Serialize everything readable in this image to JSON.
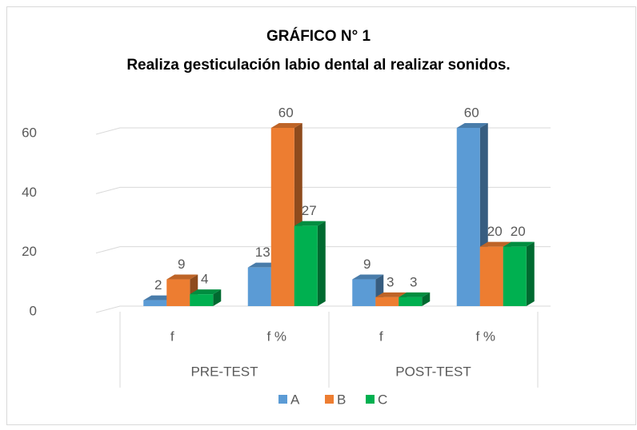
{
  "chart_data": {
    "type": "bar3d",
    "title": "GRÁFICO N° 1",
    "subtitle": "Realiza gesticulación labio dental al realizar sonidos.",
    "categories": [
      "f",
      "f %",
      "f",
      "f %"
    ],
    "groups": [
      "PRE-TEST",
      "POST-TEST"
    ],
    "series": [
      {
        "name": "A",
        "color": "#5b9bd5",
        "values": [
          2,
          13,
          9,
          60
        ]
      },
      {
        "name": "B",
        "color": "#ed7d31",
        "values": [
          9,
          60,
          3,
          20
        ]
      },
      {
        "name": "C",
        "color": "#00b050",
        "values": [
          4,
          27,
          3,
          20
        ]
      }
    ],
    "ylim": [
      0,
      60
    ],
    "yticks": [
      0,
      20,
      40,
      60
    ],
    "grid": true,
    "legend": "bottom"
  }
}
